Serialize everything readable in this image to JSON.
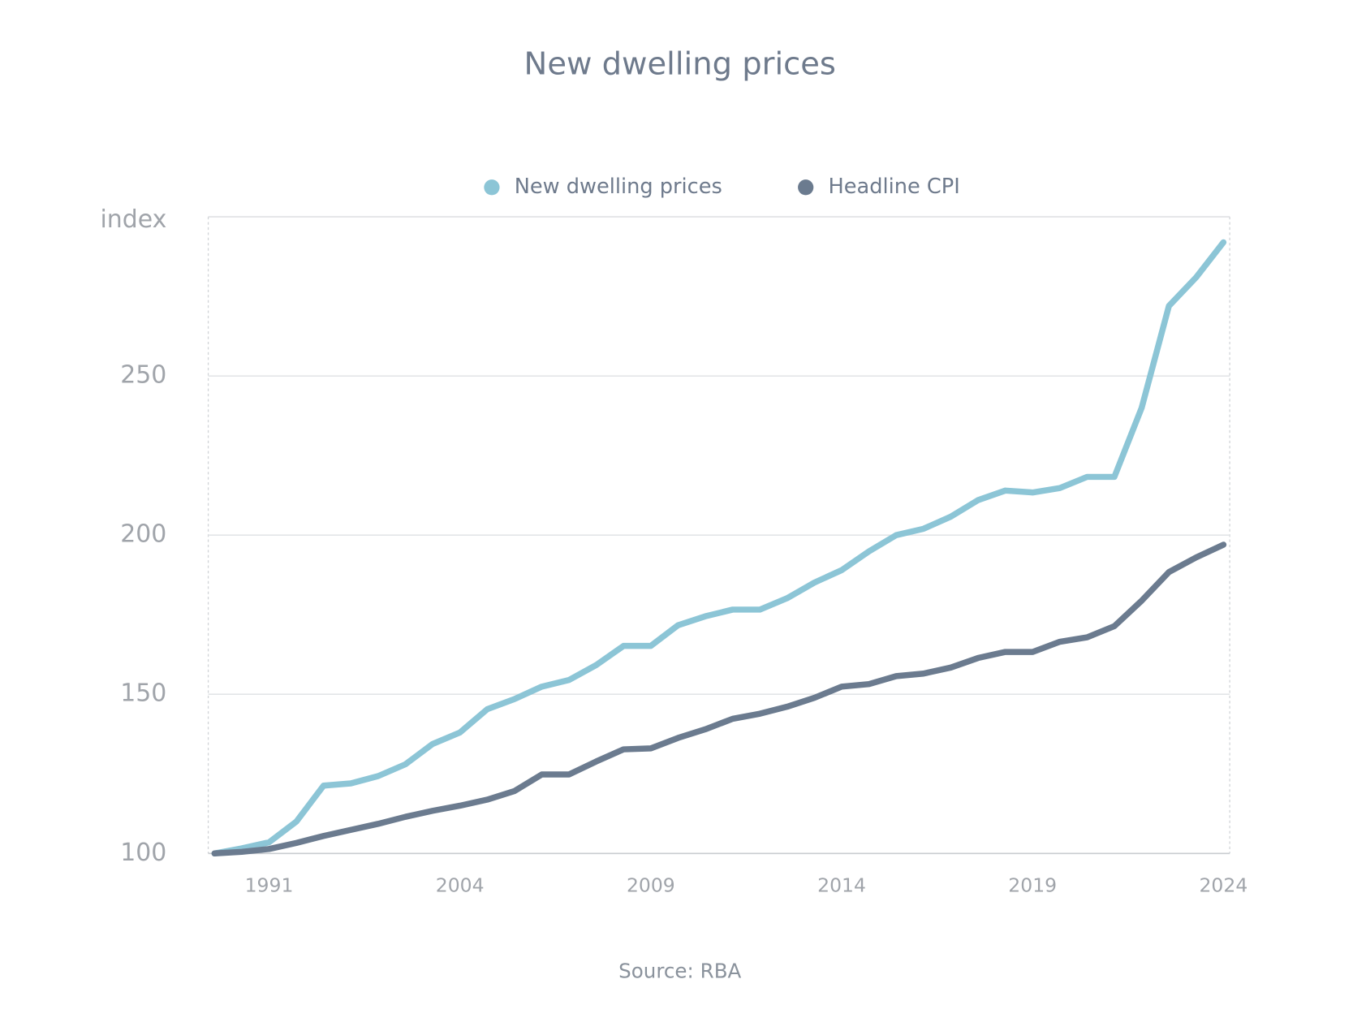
{
  "chart_data": {
    "type": "line",
    "title": "New dwelling prices",
    "y_label": "index",
    "source": "Source: RBA",
    "categories": [
      null,
      null,
      "1991",
      null,
      null,
      null,
      null,
      null,
      null,
      "2004",
      null,
      null,
      null,
      null,
      null,
      null,
      "2009",
      null,
      null,
      null,
      null,
      null,
      null,
      "2014",
      null,
      null,
      null,
      null,
      null,
      null,
      "2019",
      null,
      null,
      null,
      null,
      null,
      null,
      "2024"
    ],
    "series": [
      {
        "name": "New dwelling prices",
        "color": "#8cc5d6",
        "values": [
          100,
          101.6,
          103.5,
          110,
          121.3,
          122,
          124.3,
          128,
          134.4,
          138,
          145.3,
          148.5,
          152.4,
          154.5,
          159.2,
          165.2,
          165.2,
          171.7,
          174.5,
          176.6,
          176.6,
          180.2,
          185.1,
          189,
          194.9,
          200,
          202,
          205.8,
          211,
          214,
          213.4,
          214.8,
          218.3,
          218.3,
          240,
          272,
          281,
          292
        ]
      },
      {
        "name": "Headline CPI",
        "color": "#6b7b8f",
        "values": [
          100,
          100.5,
          101.4,
          103.3,
          105.5,
          107.4,
          109.3,
          111.5,
          113.4,
          115,
          116.9,
          119.6,
          124.8,
          124.8,
          128.9,
          132.7,
          133,
          136.3,
          139,
          142.3,
          143.9,
          146.1,
          148.9,
          152.4,
          153.2,
          155.7,
          156.5,
          158.4,
          161.4,
          163.3,
          163.3,
          166.5,
          167.9,
          171.4,
          179.4,
          188.4,
          193,
          197
        ]
      }
    ],
    "ylim": [
      100,
      300
    ],
    "yticks": [
      100,
      150,
      200,
      250
    ],
    "grid": true,
    "legend": "top"
  }
}
